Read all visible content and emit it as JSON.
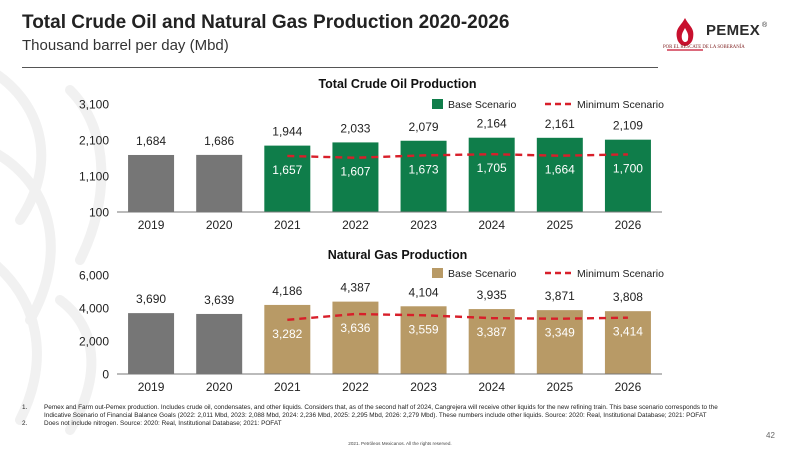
{
  "header": {
    "title": "Total Crude Oil and Natural Gas Production 2020-2026",
    "subtitle": "Thousand barrel per day (Mbd)"
  },
  "logo": {
    "word": "PEMEX",
    "reg": "®",
    "tagline": "POR EL RESCATE DE LA SOBERANÍA"
  },
  "colors": {
    "history": "#767676",
    "crude": "#0f7d4a",
    "gas": "#b89a66",
    "minimum": "#d81f2a",
    "logo_red": "#c8102e"
  },
  "chart_data": [
    {
      "type": "bar",
      "title": "Total Crude Oil Production",
      "categories": [
        "2019",
        "2020",
        "2021",
        "2022",
        "2023",
        "2024",
        "2025",
        "2026"
      ],
      "ylim": [
        100,
        3100
      ],
      "yticks": [
        "100",
        "1,100",
        "2,100",
        "3,100"
      ],
      "series": [
        {
          "name": "Base Scenario",
          "values": [
            1684,
            1686,
            1944,
            2033,
            2079,
            2164,
            2161,
            2109
          ],
          "labels": [
            "1,684",
            "1,686",
            "1,944",
            "2,033",
            "2,079",
            "2,164",
            "2,161",
            "2,109"
          ]
        },
        {
          "name": "Minimum Scenario",
          "style": "dashed-line",
          "values": [
            null,
            null,
            1657,
            1607,
            1673,
            1705,
            1664,
            1700
          ],
          "labels": [
            "",
            "",
            "1,657",
            "1,607",
            "1,673",
            "1,705",
            "1,664",
            "1,700"
          ]
        }
      ],
      "legend": {
        "placement": "top-right"
      },
      "grid": false
    },
    {
      "type": "bar",
      "title": "Natural Gas Production",
      "categories": [
        "2019",
        "2020",
        "2021",
        "2022",
        "2023",
        "2024",
        "2025",
        "2026"
      ],
      "ylim": [
        0,
        6000
      ],
      "yticks": [
        "0",
        "2,000",
        "4,000",
        "6,000"
      ],
      "series": [
        {
          "name": "Base Scenario",
          "values": [
            3690,
            3639,
            4186,
            4387,
            4104,
            3935,
            3871,
            3808
          ],
          "labels": [
            "3,690",
            "3,639",
            "4,186",
            "4,387",
            "4,104",
            "3,935",
            "3,871",
            "3,808"
          ]
        },
        {
          "name": "Minimum Scenario",
          "style": "dashed-line",
          "values": [
            null,
            null,
            3282,
            3636,
            3559,
            3387,
            3349,
            3414
          ],
          "labels": [
            "",
            "",
            "3,282",
            "3,636",
            "3,559",
            "3,387",
            "3,349",
            "3,414"
          ]
        }
      ],
      "legend": {
        "placement": "top-right"
      },
      "grid": false
    }
  ],
  "footnotes": [
    {
      "num": "1.",
      "text": "Pemex and Farm out-Pemex production. Includes crude oil, condensates, and other liquids. Considers that, as of the second half of 2024, Cangrejera will receive other liquids for the new refining train. This base scenario corresponds to the Indicative Scenario of Financial Balance Goals (2022: 2,011 Mbd, 2023: 2,088 Mbd, 2024: 2,236 Mbd, 2025: 2,295 Mbd, 2026: 2,279 Mbd). These numbers include other liquids. Source: 2020: Real, Institutional Database; 2021: POFAT"
    },
    {
      "num": "2.",
      "text": "Does not include nitrogen. Source: 2020: Real, Institutional Database; 2021: POFAT"
    }
  ],
  "copyright": "2021. Petróleos Mexicanos. All the rights reserved.",
  "page_number": "42"
}
